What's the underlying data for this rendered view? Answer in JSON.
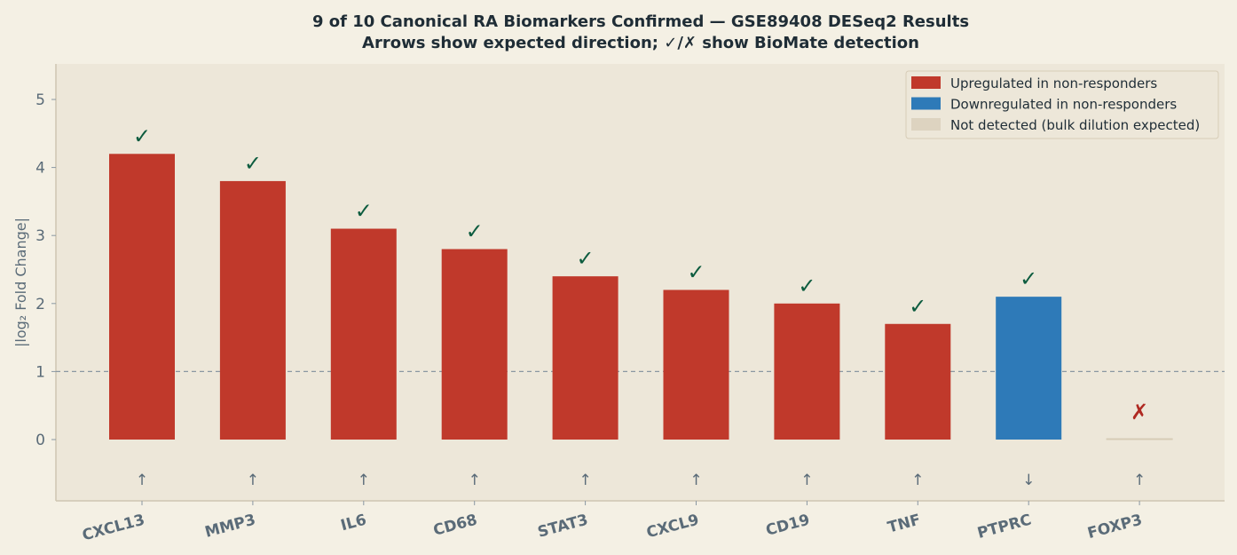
{
  "chart_data": {
    "type": "bar",
    "title": "9 of 10 Canonical RA Biomarkers Confirmed — GSE89408 DESeq2 Results",
    "subtitle": "Arrows show expected direction; ✓/✗ show BioMate detection",
    "ylabel": "|log₂ Fold Change|",
    "xlabel": "",
    "ylim": [
      -0.9,
      5.5
    ],
    "yticks": [
      0,
      1,
      2,
      3,
      4,
      5
    ],
    "threshold": 1,
    "categories": [
      "CXCL13",
      "MMP3",
      "IL6",
      "CD68",
      "STAT3",
      "CXCL9",
      "CD19",
      "TNF",
      "PTPRC",
      "FOXP3"
    ],
    "values": [
      4.2,
      3.8,
      3.1,
      2.8,
      2.4,
      2.2,
      2.0,
      1.7,
      2.1,
      0.0
    ],
    "status": [
      "up",
      "up",
      "up",
      "up",
      "up",
      "up",
      "up",
      "up",
      "down",
      "none"
    ],
    "expected_direction": [
      "↑",
      "↑",
      "↑",
      "↑",
      "↑",
      "↑",
      "↑",
      "↑",
      "↓",
      "↑"
    ],
    "detection": [
      "✓",
      "✓",
      "✓",
      "✓",
      "✓",
      "✓",
      "✓",
      "✓",
      "✓",
      "✗"
    ],
    "legend": [
      {
        "label": "Upregulated in non-responders",
        "color": "#c0392b"
      },
      {
        "label": "Downregulated in non-responders",
        "color": "#2e7ab8"
      },
      {
        "label": "Not detected (bulk dilution expected)",
        "color": "#ddd3c0"
      }
    ],
    "legend_position": "top-right",
    "grid": false,
    "colors": {
      "up": "#c0392b",
      "down": "#2e7ab8",
      "none": "#ddd3c0",
      "check": "#0d5c3f",
      "cross": "#b02a22"
    }
  }
}
